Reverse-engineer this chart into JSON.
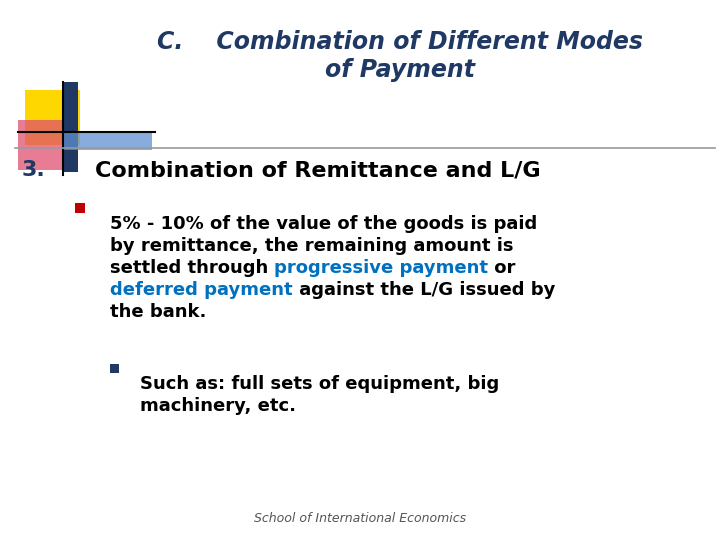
{
  "bg_color": "#ffffff",
  "title_line1": "C.    Combination of Different Modes",
  "title_line2": "of Payment",
  "title_color": "#1F3864",
  "section_num": "3.",
  "section_text": "Combination of Remittance and L/G",
  "section_num_color": "#1F3864",
  "section_text_color": "#000000",
  "bullet1_lines": [
    [
      {
        "text": "5% - 10% of the value of the goods is paid",
        "color": "#000000"
      }
    ],
    [
      {
        "text": "by remittance, the remaining amount is",
        "color": "#000000"
      }
    ],
    [
      {
        "text": "settled through ",
        "color": "#000000"
      },
      {
        "text": "progressive payment",
        "color": "#0070C0"
      },
      {
        "text": " or",
        "color": "#000000"
      }
    ],
    [
      {
        "text": "deferred payment",
        "color": "#0070C0"
      },
      {
        "text": " against the L/G issued by",
        "color": "#000000"
      }
    ],
    [
      {
        "text": "the bank.",
        "color": "#000000"
      }
    ]
  ],
  "bullet2_lines": [
    [
      {
        "text": "Such as: full sets of equipment, big",
        "color": "#000000"
      }
    ],
    [
      {
        "text": "machinery, etc.",
        "color": "#000000"
      }
    ]
  ],
  "bullet1_marker_color": "#C00000",
  "bullet2_marker_color": "#1F3864",
  "footer": "School of International Economics",
  "footer_color": "#555555",
  "divider_color": "#999999",
  "logo_yellow": "#FFD700",
  "logo_blue_dark": "#1F3864",
  "logo_pink": "#E05070",
  "logo_blue_light": "#6090D0",
  "title_fontsize": 17,
  "section_fontsize": 16,
  "body_fontsize": 13,
  "footer_fontsize": 9
}
